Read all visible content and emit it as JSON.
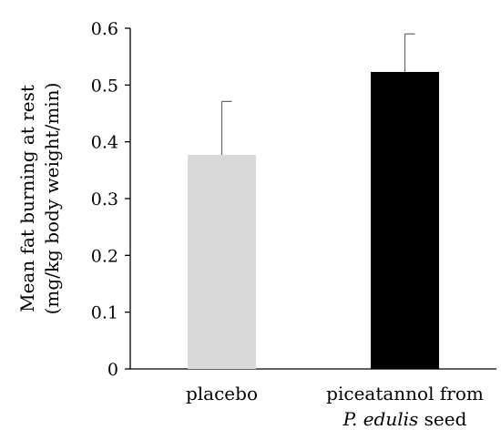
{
  "chart_data": {
    "type": "bar",
    "title": "",
    "xlabel": "",
    "ylabel": [
      "Mean fat burning at rest",
      "(mg/kg body weight/min)"
    ],
    "ylim": [
      0,
      0.6
    ],
    "yticks": [
      "0",
      "0.1",
      "0.2",
      "0.3",
      "0.4",
      "0.5",
      "0.6"
    ],
    "grid": false,
    "categories": [
      {
        "lines": [
          [
            "placebo"
          ]
        ]
      },
      {
        "lines": [
          [
            "piceatannol from"
          ],
          [
            {
              "text": "P. edulis",
              "italic": true
            },
            " seed"
          ]
        ]
      }
    ],
    "values": [
      0.377,
      0.523
    ],
    "errors": [
      0.094,
      0.067
    ],
    "colors": [
      "#d9d9d9",
      "#000000"
    ]
  }
}
